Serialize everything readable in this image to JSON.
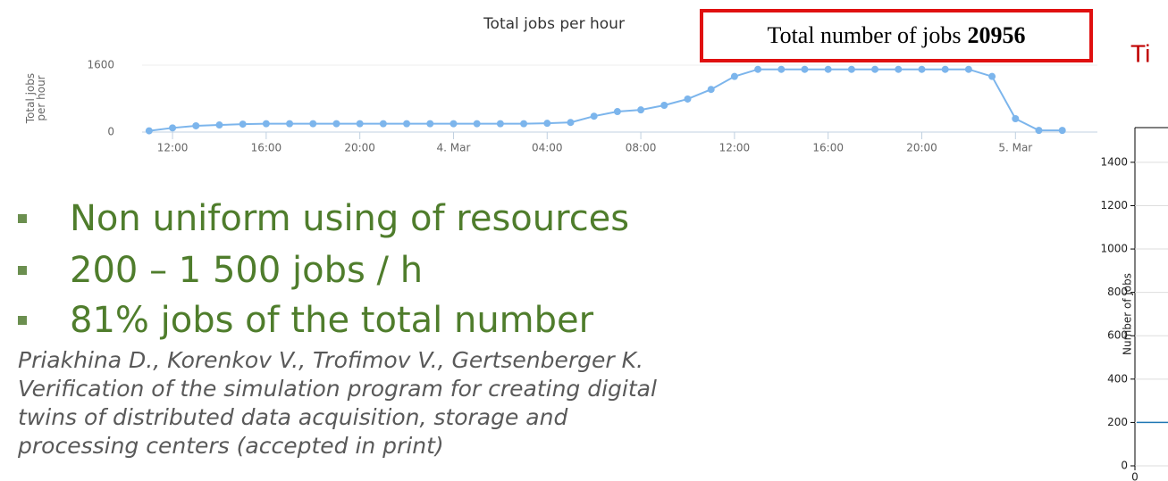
{
  "chart_data": [
    {
      "type": "line",
      "title": "Total jobs per hour",
      "y_label": "Total jobs per hour",
      "x": [
        -1,
        0,
        1,
        2,
        3,
        4,
        5,
        6,
        7,
        8,
        9,
        10,
        11,
        12,
        13,
        14,
        15,
        16,
        17,
        18,
        19,
        20,
        21,
        22,
        23,
        24,
        25,
        26,
        27,
        28,
        29,
        30,
        31,
        32,
        33,
        34,
        35,
        36,
        37,
        38
      ],
      "series": [
        {
          "name": "Total jobs per hour",
          "color": "#7cb5ec",
          "values": [
            30,
            100,
            150,
            170,
            190,
            200,
            200,
            200,
            200,
            200,
            200,
            200,
            200,
            200,
            200,
            200,
            200,
            210,
            230,
            380,
            490,
            530,
            640,
            790,
            1020,
            1330,
            1500,
            1500,
            1500,
            1500,
            1500,
            1500,
            1500,
            1500,
            1500,
            1500,
            1330,
            320,
            40,
            40
          ]
        }
      ],
      "xlim": [
        -1.3,
        39.5
      ],
      "xticks": [
        {
          "value": 0,
          "label": "12:00"
        },
        {
          "value": 4,
          "label": "16:00"
        },
        {
          "value": 8,
          "label": "20:00"
        },
        {
          "value": 12,
          "label": "4. Mar"
        },
        {
          "value": 16,
          "label": "04:00"
        },
        {
          "value": 20,
          "label": "08:00"
        },
        {
          "value": 24,
          "label": "12:00"
        },
        {
          "value": 28,
          "label": "16:00"
        },
        {
          "value": 32,
          "label": "20:00"
        },
        {
          "value": 36,
          "label": "5. Mar"
        }
      ],
      "ylim": [
        0,
        1600
      ],
      "yticks": [
        0,
        1600
      ],
      "annotation": {
        "label": "Total number of jobs",
        "value": 20956
      }
    },
    {
      "type": "line",
      "title": "Ti",
      "y_label": "Number of jobs",
      "series": [
        {
          "color": "#1f77b4",
          "values": [
            200
          ]
        }
      ],
      "x": [
        0
      ],
      "xticks": [
        0
      ],
      "ylim": [
        0,
        1560
      ],
      "yticks": [
        0,
        200,
        400,
        600,
        800,
        1000,
        1200,
        1400
      ],
      "grid": true
    }
  ],
  "bullets": [
    "Non uniform using of resources",
    "200 – 1 500 jobs / h",
    "81%  jobs of the total number"
  ],
  "citation": [
    "Priakhina D., Korenkov V., Trofimov V., Gertsenberger K.",
    "Verification of the simulation program for creating digital",
    "twins of distributed data acquisition, storage and",
    "processing centers (accepted in print)"
  ]
}
